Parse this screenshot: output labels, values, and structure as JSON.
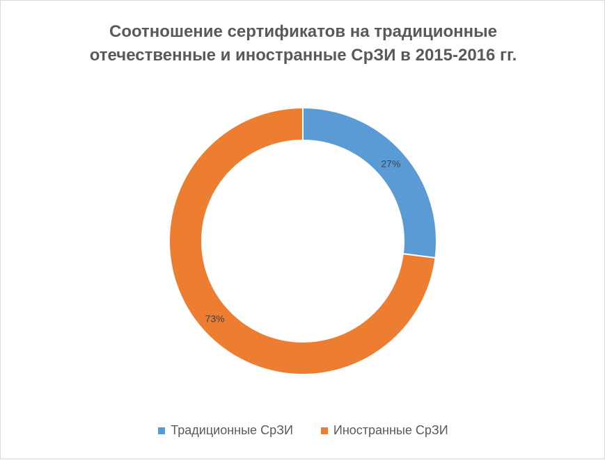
{
  "chart_data": {
    "type": "pie",
    "variant": "donut",
    "title": [
      "Соотношение сертификатов на традиционные",
      "отечественные и иностранные СрЗИ в 2015-2016 гг."
    ],
    "categories": [
      "Традиционные СрЗИ",
      "Иностранные СрЗИ"
    ],
    "values": [
      27,
      73
    ],
    "value_labels": [
      "27%",
      "73%"
    ],
    "colors": [
      "#5b9bd5",
      "#ed7d31"
    ],
    "legend_position": "bottom"
  }
}
